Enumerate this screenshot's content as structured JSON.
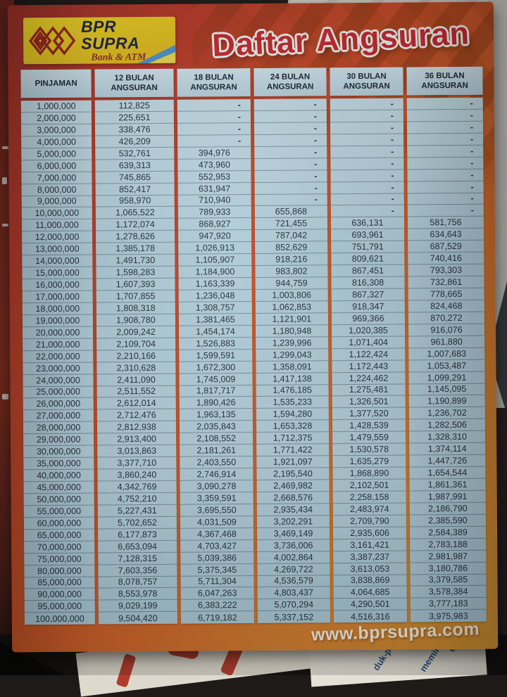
{
  "flyer": {
    "logo": {
      "name": "BPR SUPRA",
      "subtitle": "Bank & ATM"
    },
    "title": "Daftar Angsuran",
    "website": "www.bprsupra.com",
    "table": {
      "columns": [
        "PINJAMAN",
        "12 BULAN ANGSURAN",
        "18 BULAN ANGSURAN",
        "24 BULAN ANGSURAN",
        "30 BULAN ANGSURAN",
        "36 BULAN ANGSURAN"
      ],
      "rows": [
        [
          "1,000,000",
          "112,825",
          "-",
          "-",
          "-",
          "-"
        ],
        [
          "2,000,000",
          "225,651",
          "-",
          "-",
          "-",
          "-"
        ],
        [
          "3,000,000",
          "338,476",
          "-",
          "-",
          "-",
          "-"
        ],
        [
          "4,000,000",
          "426,209",
          "-",
          "-",
          "-",
          "-"
        ],
        [
          "5,000,000",
          "532,761",
          "394,976",
          "-",
          "-",
          "-"
        ],
        [
          "6,000,000",
          "639,313",
          "473,960",
          "-",
          "-",
          "-"
        ],
        [
          "7,000,000",
          "745,865",
          "552,953",
          "-",
          "-",
          "-"
        ],
        [
          "8,000,000",
          "852,417",
          "631,947",
          "-",
          "-",
          "-"
        ],
        [
          "9,000,000",
          "958,970",
          "710,940",
          "-",
          "-",
          "-"
        ],
        [
          "10,000,000",
          "1,065,522",
          "789,933",
          "655,868",
          "-",
          "-"
        ],
        [
          "11,000,000",
          "1,172,074",
          "868,927",
          "721,455",
          "636,131",
          "581,756"
        ],
        [
          "12,000,000",
          "1,278,626",
          "947,920",
          "787,042",
          "693,961",
          "634,643"
        ],
        [
          "13,000,000",
          "1,385,178",
          "1,026,913",
          "852,629",
          "751,791",
          "687,529"
        ],
        [
          "14,000,000",
          "1,491,730",
          "1,105,907",
          "918,216",
          "809,621",
          "740,416"
        ],
        [
          "15,000,000",
          "1,598,283",
          "1,184,900",
          "983,802",
          "867,451",
          "793,303"
        ],
        [
          "16,000,000",
          "1,607,393",
          "1,163,339",
          "944,759",
          "816,308",
          "732,861"
        ],
        [
          "17,000,000",
          "1,707,855",
          "1,236,048",
          "1,003,806",
          "867,327",
          "778,665"
        ],
        [
          "18,000,000",
          "1,808,318",
          "1,308,757",
          "1,062,853",
          "918,347",
          "824,468"
        ],
        [
          "19,000,000",
          "1,908,780",
          "1,381,465",
          "1,121,901",
          "969,366",
          "870,272"
        ],
        [
          "20,000,000",
          "2,009,242",
          "1,454,174",
          "1,180,948",
          "1,020,385",
          "916,076"
        ],
        [
          "21,000,000",
          "2,109,704",
          "1,526,883",
          "1,239,996",
          "1,071,404",
          "961,880"
        ],
        [
          "22,000,000",
          "2,210,166",
          "1,599,591",
          "1,299,043",
          "1,122,424",
          "1,007,683"
        ],
        [
          "23,000,000",
          "2,310,628",
          "1,672,300",
          "1,358,091",
          "1,172,443",
          "1,053,487"
        ],
        [
          "24,000,000",
          "2,411,090",
          "1,745,009",
          "1,417,138",
          "1,224,462",
          "1,099,291"
        ],
        [
          "25,000,000",
          "2,511,552",
          "1,817,717",
          "1,476,185",
          "1,275,481",
          "1,145,095"
        ],
        [
          "26,000,000",
          "2,612,014",
          "1,890,426",
          "1,535,233",
          "1,326,501",
          "1,190,899"
        ],
        [
          "27,000,000",
          "2,712,476",
          "1,963,135",
          "1,594,280",
          "1,377,520",
          "1,236,702"
        ],
        [
          "28,000,000",
          "2,812,938",
          "2,035,843",
          "1,653,328",
          "1,428,539",
          "1,282,506"
        ],
        [
          "29,000,000",
          "2,913,400",
          "2,108,552",
          "1,712,375",
          "1,479,559",
          "1,328,310"
        ],
        [
          "30,000,000",
          "3,013,863",
          "2,181,261",
          "1,771,422",
          "1,530,578",
          "1,374,114"
        ],
        [
          "35,000,000",
          "3,377,710",
          "2,403,550",
          "1,921,097",
          "1,635,279",
          "1,447,726"
        ],
        [
          "40,000,000",
          "3,860,240",
          "2,746,914",
          "2,195,540",
          "1,868,890",
          "1,654,544"
        ],
        [
          "45,000,000",
          "4,342,769",
          "3,090,278",
          "2,469,982",
          "2,102,501",
          "1,861,361"
        ],
        [
          "50,000,000",
          "4,752,210",
          "3,359,591",
          "2,668,576",
          "2,258,158",
          "1,987,991"
        ],
        [
          "55,000,000",
          "5,227,431",
          "3,695,550",
          "2,935,434",
          "2,483,974",
          "2,186,790"
        ],
        [
          "60,000,000",
          "5,702,652",
          "4,031,509",
          "3,202,291",
          "2,709,790",
          "2,385,590"
        ],
        [
          "65,000,000",
          "6,177,873",
          "4,367,468",
          "3,469,149",
          "2,935,606",
          "2,584,389"
        ],
        [
          "70,000,000",
          "6,653,094",
          "4,703,427",
          "3,736,006",
          "3,161,421",
          "2,783,188"
        ],
        [
          "75,000,000",
          "7,128,315",
          "5,039,386",
          "4,002,864",
          "3,387,237",
          "2,981,987"
        ],
        [
          "80,000,000",
          "7,603,356",
          "5,375,345",
          "4,269,722",
          "3,613,053",
          "3,180,786"
        ],
        [
          "85,000,000",
          "8,078,757",
          "5,711,304",
          "4,536,579",
          "3,838,869",
          "3,379,585"
        ],
        [
          "90,000,000",
          "8,553,978",
          "6,047,263",
          "4,803,437",
          "4,064,685",
          "3,578,384"
        ],
        [
          "95,000,000",
          "9,029,199",
          "6,383,222",
          "5,070,294",
          "4,290,501",
          "3,777,183"
        ],
        [
          "100,000,000",
          "9,504,420",
          "6,719,182",
          "5,337,152",
          "4,516,316",
          "3,975,983"
        ]
      ]
    }
  },
  "background": {
    "fragments": [
      "duk-pr",
      "memin",
      "dan"
    ]
  },
  "colors": {
    "flyer-red": "#b43727",
    "flyer-orange": "#cd9231",
    "title-red": "#c1272d",
    "logo-yellow": "#e7c920",
    "cell-blue": "#b4cfdb",
    "header-text": "#1a2633"
  }
}
